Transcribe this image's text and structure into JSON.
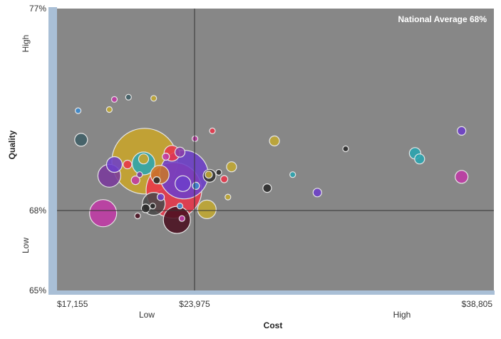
{
  "chart_data": {
    "type": "scatter",
    "subtype": "bubble",
    "xlabel": "Cost",
    "ylabel": "Quality",
    "xlim": [
      17155,
      38805
    ],
    "ylim": [
      65,
      77
    ],
    "x_ticks": [
      {
        "value": 17155,
        "label": "$17,155"
      },
      {
        "value": 23975,
        "label": "$23,975"
      },
      {
        "value": 38805,
        "label": "$38,805"
      }
    ],
    "y_ticks": [
      {
        "value": 77,
        "label": "77%"
      },
      {
        "value": 68,
        "label": "68%"
      },
      {
        "value": 65,
        "label": "65%"
      }
    ],
    "x_qualitative": {
      "low": "Low",
      "high": "High"
    },
    "y_qualitative": {
      "low": "Low",
      "high": "High"
    },
    "reference_lines": {
      "x": 23975,
      "y": 68
    },
    "reference_label": "National Average 68%",
    "plot_background": "#878787",
    "grid": false,
    "points": [
      {
        "x": 21500,
        "y": 70.2,
        "size": 46,
        "color": "#c9a52a"
      },
      {
        "x": 22950,
        "y": 68.9,
        "size": 39,
        "color": "#e8354a"
      },
      {
        "x": 23450,
        "y": 69.6,
        "size": 34,
        "color": "#6d3fc9"
      },
      {
        "x": 19440,
        "y": 67.9,
        "size": 19,
        "color": "#c03aa6"
      },
      {
        "x": 23100,
        "y": 67.65,
        "size": 19,
        "color": "#4a1020"
      },
      {
        "x": 21950,
        "y": 68.3,
        "size": 16,
        "color": "#4a4a4a"
      },
      {
        "x": 21450,
        "y": 70.1,
        "size": 16,
        "color": "#2aa5b0"
      },
      {
        "x": 22250,
        "y": 69.6,
        "size": 13,
        "color": "#c8762a"
      },
      {
        "x": 19750,
        "y": 69.55,
        "size": 16,
        "color": "#7a3a9c"
      },
      {
        "x": 24650,
        "y": 68.05,
        "size": 13,
        "color": "#c2a832"
      },
      {
        "x": 22850,
        "y": 70.55,
        "size": 11,
        "color": "#e8354a"
      },
      {
        "x": 20000,
        "y": 70.05,
        "size": 11,
        "color": "#6d3fc9"
      },
      {
        "x": 23400,
        "y": 69.2,
        "size": 11,
        "color": "#6d3fc9"
      },
      {
        "x": 24800,
        "y": 69.55,
        "size": 9,
        "color": "#333333"
      },
      {
        "x": 18350,
        "y": 71.15,
        "size": 9,
        "color": "#3f5f66"
      },
      {
        "x": 36050,
        "y": 70.55,
        "size": 8,
        "color": "#2aa5b0"
      },
      {
        "x": 36300,
        "y": 70.3,
        "size": 7,
        "color": "#2aa5b0"
      },
      {
        "x": 21450,
        "y": 70.3,
        "size": 7,
        "color": "#c9a52a"
      },
      {
        "x": 23250,
        "y": 70.6,
        "size": 7,
        "color": "#8a3fa8"
      },
      {
        "x": 26000,
        "y": 69.95,
        "size": 7,
        "color": "#c2a832"
      },
      {
        "x": 28350,
        "y": 71.1,
        "size": 7,
        "color": "#c2a832"
      },
      {
        "x": 21550,
        "y": 68.1,
        "size": 6,
        "color": "#2a2a2a"
      },
      {
        "x": 27950,
        "y": 69.0,
        "size": 6,
        "color": "#2a2a2a"
      },
      {
        "x": 22100,
        "y": 69.35,
        "size": 5,
        "color": "#2a2a2a"
      },
      {
        "x": 24050,
        "y": 69.1,
        "size": 5,
        "color": "#3a8ad0"
      },
      {
        "x": 38600,
        "y": 71.55,
        "size": 6,
        "color": "#6d3fc9"
      },
      {
        "x": 38600,
        "y": 69.5,
        "size": 9,
        "color": "#c03aa6"
      },
      {
        "x": 20650,
        "y": 70.05,
        "size": 6,
        "color": "#e8354a"
      },
      {
        "x": 21050,
        "y": 69.35,
        "size": 6,
        "color": "#c03aa6"
      },
      {
        "x": 24750,
        "y": 69.6,
        "size": 5,
        "color": "#c2a832"
      },
      {
        "x": 25600,
        "y": 69.4,
        "size": 5,
        "color": "#e8354a"
      },
      {
        "x": 25300,
        "y": 69.7,
        "size": 4,
        "color": "#2a2a2a"
      },
      {
        "x": 29350,
        "y": 69.6,
        "size": 4,
        "color": "#2aa5b0"
      },
      {
        "x": 30700,
        "y": 68.8,
        "size": 6,
        "color": "#6d3fc9"
      },
      {
        "x": 25800,
        "y": 68.6,
        "size": 4,
        "color": "#c2a832"
      },
      {
        "x": 22300,
        "y": 68.6,
        "size": 5,
        "color": "#6d3fc9"
      },
      {
        "x": 22550,
        "y": 70.4,
        "size": 5,
        "color": "#c03aa6"
      },
      {
        "x": 21250,
        "y": 69.6,
        "size": 4,
        "color": "#7a3a9c"
      },
      {
        "x": 24950,
        "y": 71.55,
        "size": 4,
        "color": "#e8354a"
      },
      {
        "x": 24000,
        "y": 71.2,
        "size": 4,
        "color": "#c03aa6"
      },
      {
        "x": 18200,
        "y": 72.45,
        "size": 4,
        "color": "#3a8ad0"
      },
      {
        "x": 19750,
        "y": 72.5,
        "size": 4,
        "color": "#c2a832"
      },
      {
        "x": 20000,
        "y": 72.95,
        "size": 4,
        "color": "#c03aa6"
      },
      {
        "x": 20700,
        "y": 73.05,
        "size": 4,
        "color": "#3f5f66"
      },
      {
        "x": 21950,
        "y": 73.0,
        "size": 4,
        "color": "#c2a832"
      },
      {
        "x": 21900,
        "y": 68.2,
        "size": 4,
        "color": "#2a2a2a"
      },
      {
        "x": 21150,
        "y": 67.8,
        "size": 4,
        "color": "#4a1020"
      },
      {
        "x": 23250,
        "y": 68.2,
        "size": 4,
        "color": "#3a8ad0"
      },
      {
        "x": 23350,
        "y": 67.7,
        "size": 4,
        "color": "#c03aa6"
      },
      {
        "x": 32250,
        "y": 70.75,
        "size": 4,
        "color": "#2a2a2a"
      }
    ]
  }
}
